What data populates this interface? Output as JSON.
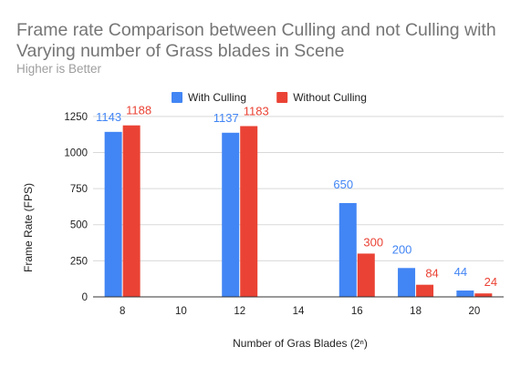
{
  "chart_data": {
    "type": "bar",
    "title_line1": "Frame rate Comparison between Culling and not Culling with",
    "title_line2": "Varying number of Grass blades in Scene",
    "subtitle": "Higher is Better",
    "xlabel": "Number of Gras Blades (2ⁿ)",
    "ylabel": "Frame Rate (FPS)",
    "categories": [
      "8",
      "10",
      "12",
      "14",
      "16",
      "18",
      "20"
    ],
    "series": [
      {
        "name": "With Culling",
        "color": "#4285f4",
        "values": [
          1143,
          null,
          1137,
          null,
          650,
          200,
          44
        ]
      },
      {
        "name": "Without Culling",
        "color": "#ea4335",
        "values": [
          1188,
          null,
          1183,
          null,
          300,
          84,
          24
        ]
      }
    ],
    "ylim": [
      0,
      1350
    ],
    "yticks": [
      0,
      250,
      500,
      750,
      1000,
      1250
    ],
    "ytick_labels": [
      "0",
      "250",
      "500",
      "750",
      "1000",
      "1250"
    ],
    "grid": true,
    "legend_position": "top"
  }
}
